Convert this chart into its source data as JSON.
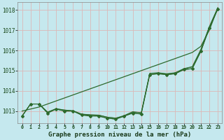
{
  "title": "Graphe pression niveau de la mer (hPa)",
  "background_color": "#c5e8ee",
  "grid_color": "#e8c8c8",
  "line_color": "#2d6a2d",
  "x_labels": [
    "0",
    "1",
    "2",
    "3",
    "4",
    "5",
    "6",
    "7",
    "8",
    "9",
    "10",
    "11",
    "12",
    "13",
    "14",
    "15",
    "16",
    "17",
    "18",
    "19",
    "20",
    "21",
    "22",
    "23"
  ],
  "ylim": [
    1012.4,
    1018.4
  ],
  "yticks": [
    1013,
    1014,
    1015,
    1016,
    1017,
    1018
  ],
  "trend_line": [
    1013.0,
    1013.1,
    1013.2,
    1013.35,
    1013.5,
    1013.65,
    1013.8,
    1013.95,
    1014.1,
    1014.25,
    1014.4,
    1014.55,
    1014.7,
    1014.85,
    1015.0,
    1015.15,
    1015.3,
    1015.45,
    1015.6,
    1015.75,
    1015.9,
    1016.2,
    1017.0,
    1018.1
  ],
  "series": [
    [
      1012.75,
      1013.35,
      1013.35,
      1012.9,
      1013.1,
      1013.0,
      1013.0,
      1012.8,
      1012.8,
      1012.75,
      1012.65,
      1012.6,
      1012.75,
      1012.9,
      1012.85,
      1014.8,
      1014.85,
      1014.8,
      1014.85,
      1015.05,
      1015.1,
      1015.95,
      1017.1,
      1018.05
    ],
    [
      1012.75,
      1013.35,
      1013.35,
      1012.95,
      1013.1,
      1013.05,
      1013.0,
      1012.85,
      1012.8,
      1012.8,
      1012.7,
      1012.65,
      1012.75,
      1012.95,
      1012.9,
      1014.85,
      1014.88,
      1014.83,
      1014.88,
      1015.08,
      1015.18,
      1016.0,
      1017.15,
      1018.1
    ],
    [
      1012.75,
      1013.35,
      1013.35,
      1012.95,
      1013.12,
      1013.05,
      1013.02,
      1012.85,
      1012.82,
      1012.8,
      1012.7,
      1012.65,
      1012.78,
      1012.97,
      1012.92,
      1014.87,
      1014.9,
      1014.85,
      1014.9,
      1015.1,
      1015.2,
      1016.05,
      1017.18,
      1018.12
    ]
  ],
  "marker_series": [
    1012.75,
    1013.35,
    1013.35,
    1012.9,
    1013.1,
    1013.0,
    1013.0,
    1012.8,
    1012.75,
    1012.75,
    1012.65,
    1012.6,
    1012.75,
    1012.9,
    1012.85,
    1014.8,
    1014.85,
    1014.8,
    1014.85,
    1015.05,
    1015.1,
    1015.95,
    1017.1,
    1018.05
  ]
}
